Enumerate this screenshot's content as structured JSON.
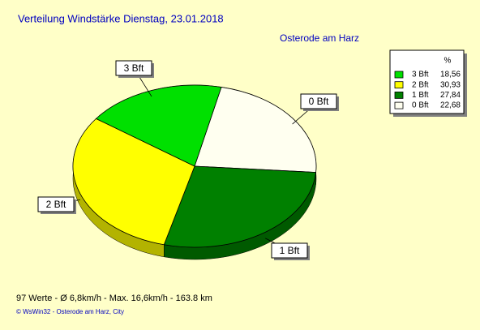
{
  "chart_data": {
    "type": "pie",
    "title": "Verteilung Windstärke  Dienstag, 23.01.2018",
    "subtitle": "Osterode am Harz",
    "legend_header": "%",
    "categories": [
      "3 Bft",
      "2 Bft",
      "1 Bft",
      "0 Bft"
    ],
    "values": [
      18.56,
      30.93,
      27.84,
      22.68
    ],
    "value_labels": [
      "18,56",
      "30,93",
      "27,84",
      "22,68"
    ],
    "colors": [
      "#00e000",
      "#ffff00",
      "#008000",
      "#fffff0"
    ]
  },
  "footer": {
    "stats": "97 Werte   -   Ø 6,8km/h  -  Max. 16,6km/h   -   163.8 km",
    "credit": "© WsWin32  -  Osterode am Harz, City"
  }
}
